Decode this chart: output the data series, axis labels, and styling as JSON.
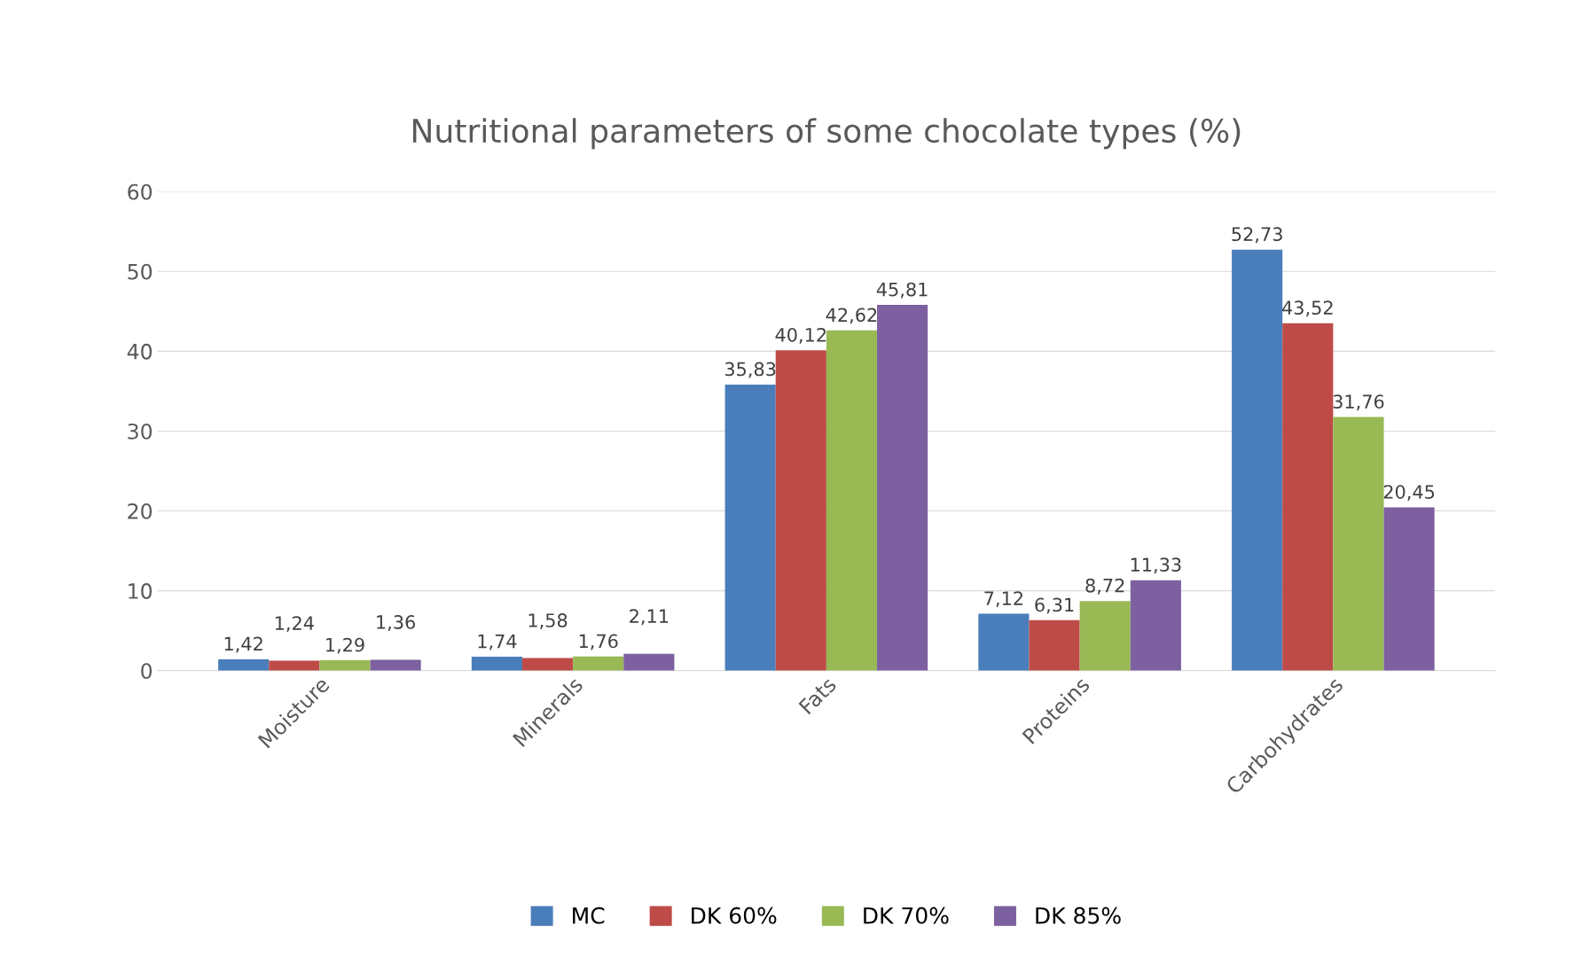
{
  "chart_data": {
    "type": "bar",
    "title": "Nutritional parameters of some chocolate types (%)",
    "categories": [
      "Moisture",
      "Minerals",
      "Fats",
      "Proteins",
      "Carbohydrates"
    ],
    "series": [
      {
        "name": "MC",
        "color": "#4a7ebb",
        "values": [
          1.42,
          1.74,
          35.83,
          7.12,
          52.73
        ],
        "value_labels": [
          "1,42",
          "1,74",
          "35,83",
          "7,12",
          "52,73"
        ]
      },
      {
        "name": "DK 60%",
        "color": "#be4b48",
        "values": [
          1.24,
          1.58,
          40.12,
          6.31,
          43.52
        ],
        "value_labels": [
          "1,24",
          "1,58",
          "40,12",
          "6,31",
          "43,52"
        ]
      },
      {
        "name": "DK 70%",
        "color": "#98b954",
        "values": [
          1.29,
          1.76,
          42.62,
          8.72,
          31.76
        ],
        "value_labels": [
          "1,29",
          "1,76",
          "42,62",
          "8,72",
          "31,76"
        ]
      },
      {
        "name": "DK 85%",
        "color": "#7d60a0",
        "values": [
          1.36,
          2.11,
          45.81,
          11.33,
          20.45
        ],
        "value_labels": [
          "1,36",
          "2,11",
          "45,81",
          "11,33",
          "20,45"
        ]
      }
    ],
    "ylim": [
      0,
      60
    ],
    "yticks": [
      0,
      10,
      20,
      30,
      40,
      50,
      60
    ],
    "grid": "y",
    "legend": "bottom"
  }
}
